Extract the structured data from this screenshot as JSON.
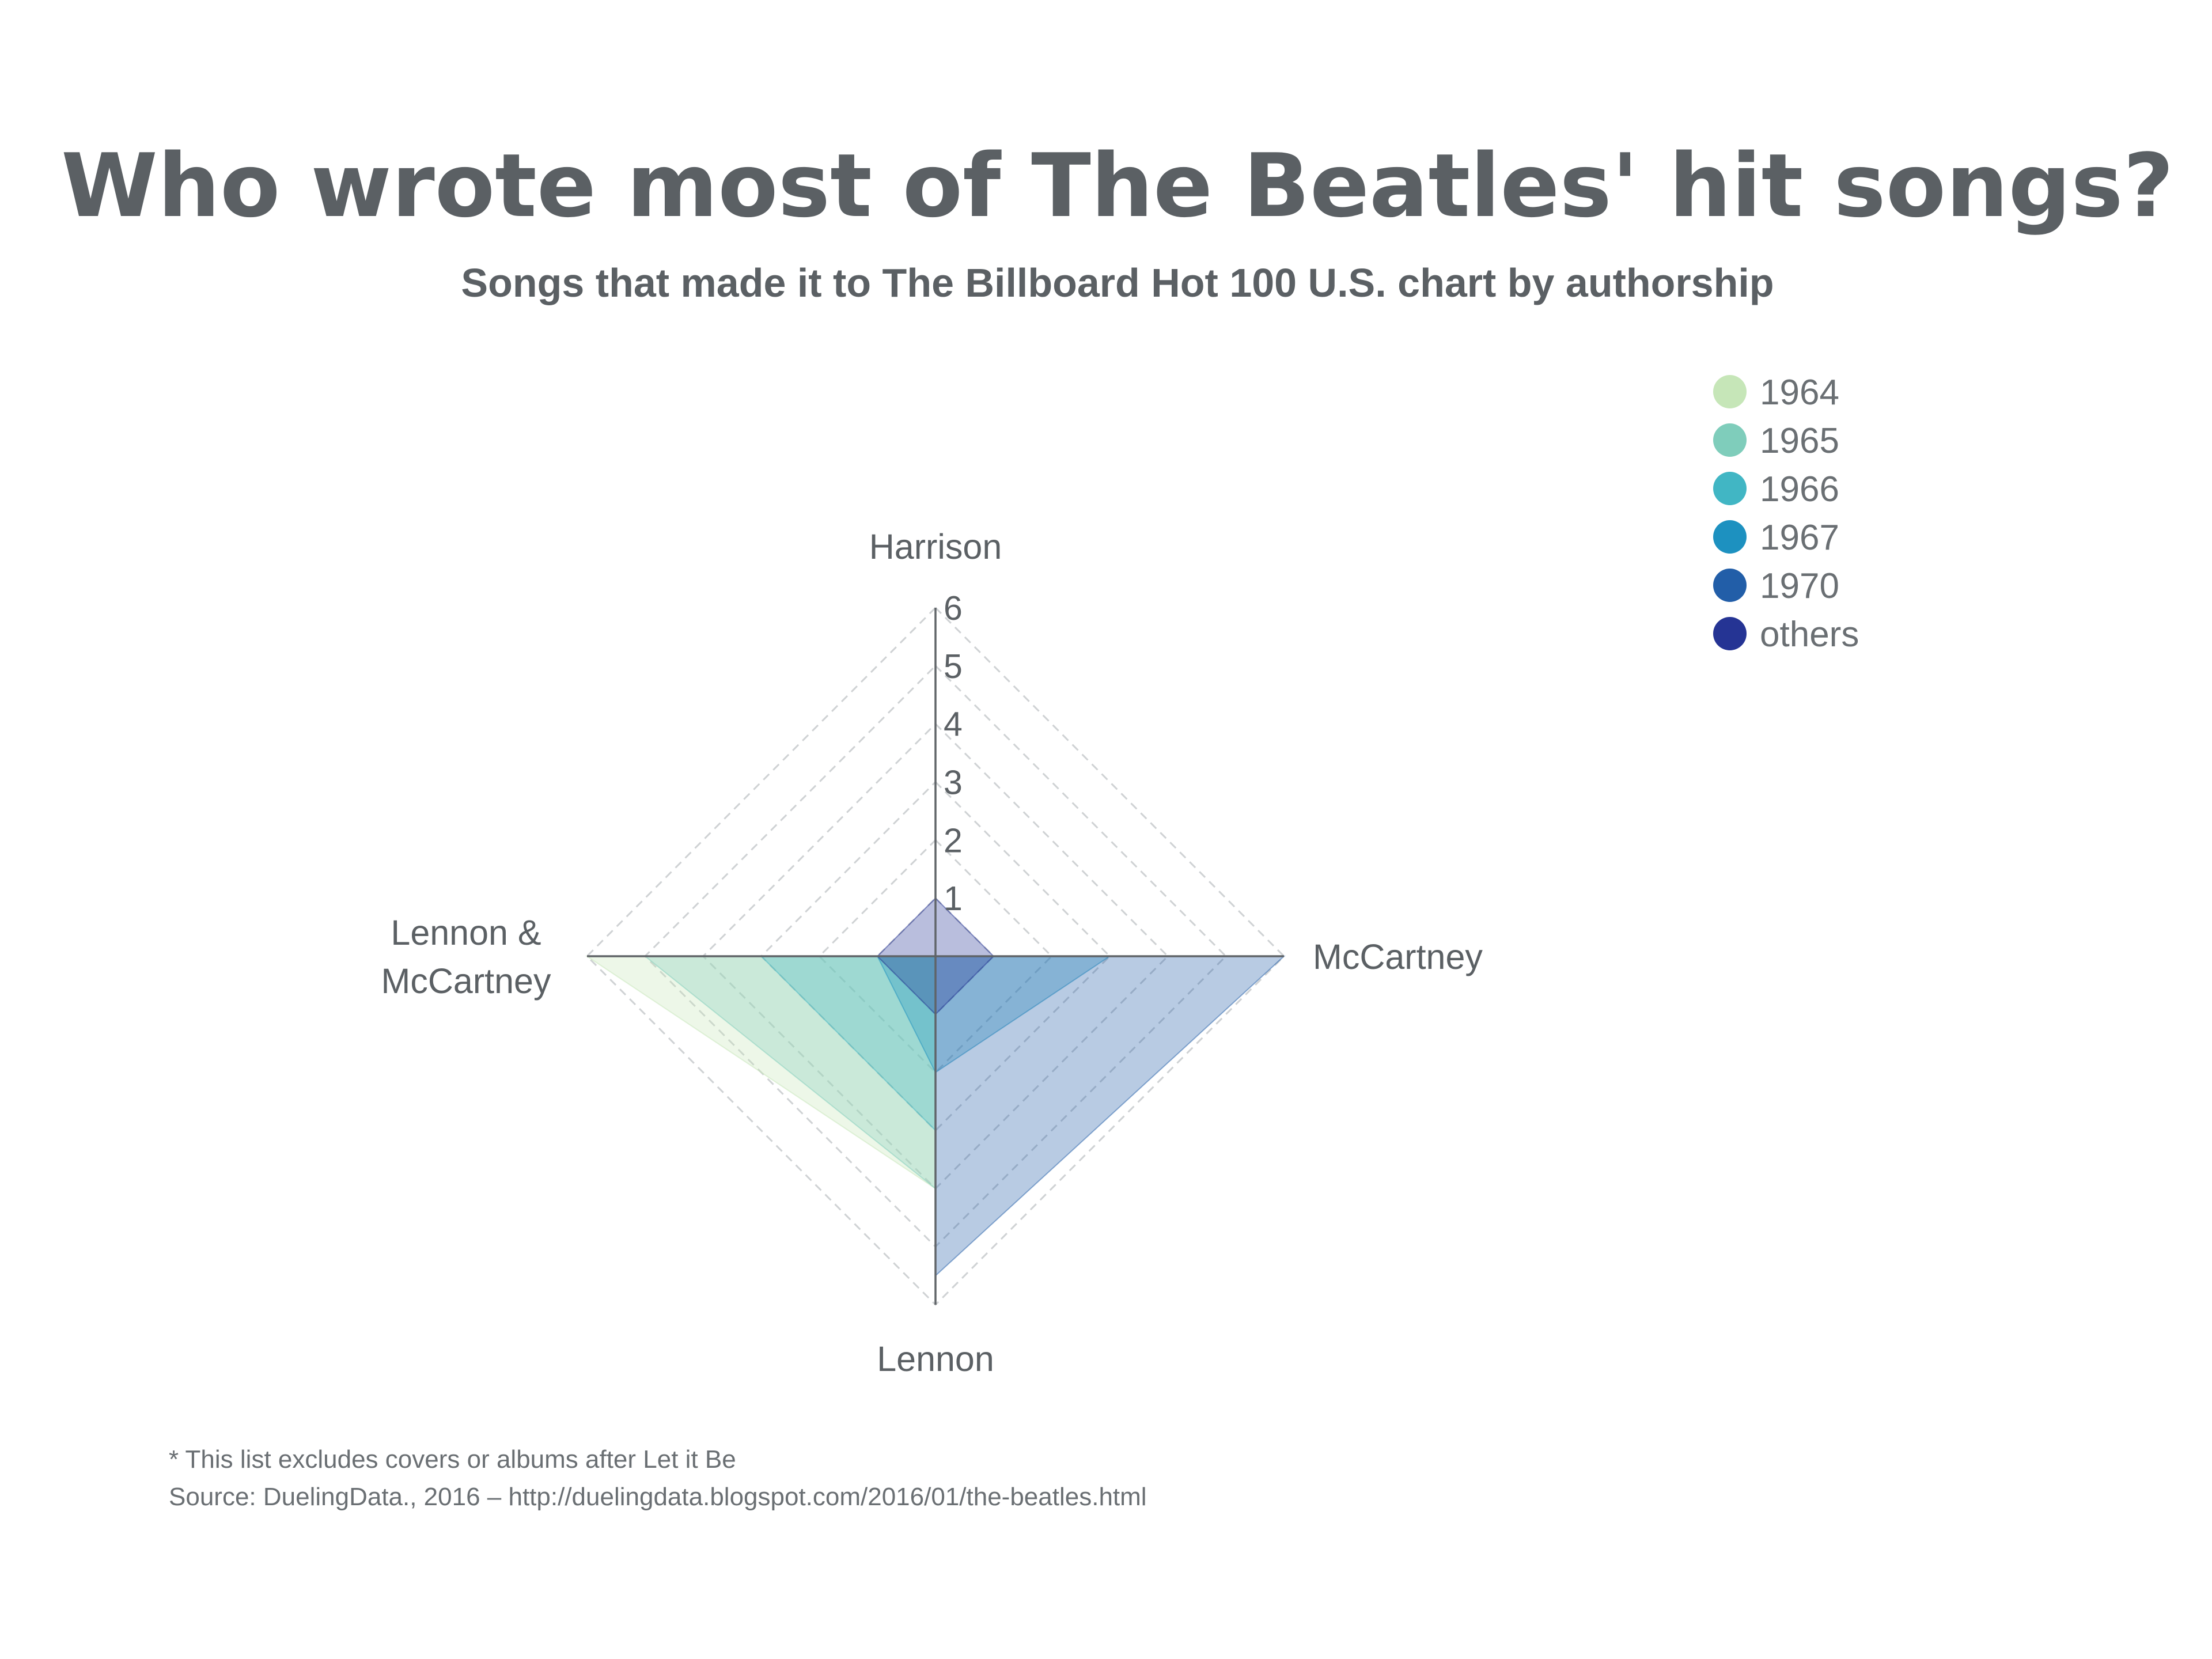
{
  "header": {
    "title": "Who wrote most of The Beatles' hit songs?",
    "subtitle": "Songs that made it to The Billboard Hot 100 U.S. chart by authorship"
  },
  "footer": {
    "note": "* This list excludes covers or albums after Let it Be",
    "source": "Source: DuelingData., 2016 – http://duelingdata.blogspot.com/2016/01/the-beatles.html"
  },
  "chart_data": {
    "type": "radar",
    "axes": [
      {
        "label": "Harrison",
        "label_lines": [
          "Harrison"
        ]
      },
      {
        "label": "McCartney",
        "label_lines": [
          "McCartney"
        ]
      },
      {
        "label": "Lennon",
        "label_lines": [
          "Lennon"
        ]
      },
      {
        "label": "Lennon & McCartney",
        "label_lines": [
          "Lennon &",
          "McCartney"
        ]
      }
    ],
    "scale": {
      "min": 0,
      "max": 6,
      "ticks": [
        "1",
        "2",
        "3",
        "4",
        "5",
        "6"
      ]
    },
    "grid": true,
    "legend_position": "top-right",
    "series": [
      {
        "name": "1964",
        "color": "#c6e6b8",
        "values": [
          0,
          0,
          4,
          6
        ]
      },
      {
        "name": "1965",
        "color": "#7fcdbb",
        "values": [
          0,
          0,
          4,
          5
        ]
      },
      {
        "name": "1966",
        "color": "#41b6c4",
        "values": [
          0,
          0,
          3,
          3
        ]
      },
      {
        "name": "1967",
        "color": "#1d91c0",
        "values": [
          0,
          3,
          2,
          1
        ]
      },
      {
        "name": "1970",
        "color": "#225ea8",
        "values": [
          0,
          6,
          5.5,
          0
        ]
      },
      {
        "name": "others",
        "color": "#253494",
        "values": [
          1,
          1,
          1,
          1
        ]
      }
    ]
  }
}
